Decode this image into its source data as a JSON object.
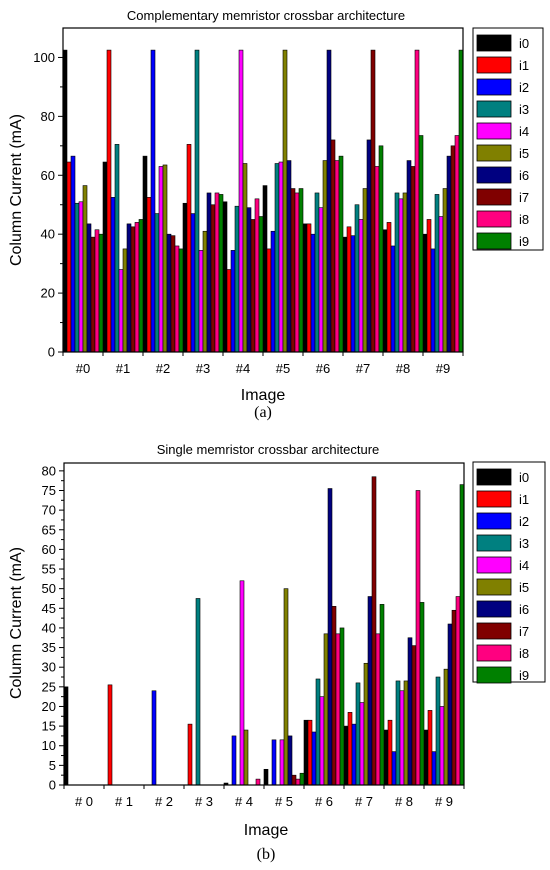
{
  "colors": [
    "#000000",
    "#ff0000",
    "#0000ff",
    "#008080",
    "#ff00ff",
    "#808000",
    "#000080",
    "#800000",
    "#ff0080",
    "#008000"
  ],
  "chart_data": [
    {
      "type": "bar",
      "title": "Complementary memristor crossbar architecture",
      "xlabel": "Image",
      "ylabel": "Column Current (mA)",
      "caption": "(a)",
      "categories": [
        "#0",
        "#1",
        "#2",
        "#3",
        "#4",
        "#5",
        "#6",
        "#7",
        "#8",
        "#9"
      ],
      "ylim": [
        0,
        110
      ],
      "yticks": [
        0,
        20,
        40,
        60,
        80,
        100
      ],
      "legend_position": "right, outside plot",
      "series": [
        {
          "name": "i0",
          "values": [
            102.5,
            64.5,
            66.5,
            50.5,
            51,
            56.5,
            43.5,
            39,
            41.5,
            40
          ]
        },
        {
          "name": "i1",
          "values": [
            64.5,
            102.5,
            52.5,
            70.5,
            28,
            35,
            43.5,
            42.5,
            44,
            45
          ]
        },
        {
          "name": "i2",
          "values": [
            66.5,
            52.5,
            102.5,
            47,
            34.5,
            41,
            40,
            39.5,
            36,
            35
          ]
        },
        {
          "name": "i3",
          "values": [
            50.5,
            70.5,
            47,
            102.5,
            49.5,
            64,
            54,
            50,
            54,
            53.5
          ]
        },
        {
          "name": "i4",
          "values": [
            51,
            28,
            63,
            34.5,
            102.5,
            64.5,
            49,
            45,
            52,
            46
          ]
        },
        {
          "name": "i5",
          "values": [
            56.5,
            35,
            63.5,
            41,
            64,
            102.5,
            65,
            55.5,
            54,
            55.5
          ]
        },
        {
          "name": "i6",
          "values": [
            43.5,
            43.5,
            40,
            54,
            49,
            65,
            102.5,
            72,
            65,
            66.5
          ]
        },
        {
          "name": "i7",
          "values": [
            39,
            42.5,
            39.5,
            50,
            45,
            55.5,
            72,
            102.5,
            63,
            70
          ]
        },
        {
          "name": "i8",
          "values": [
            41.5,
            44,
            36,
            54,
            52,
            54,
            65,
            63,
            102.5,
            73.5
          ]
        },
        {
          "name": "i9",
          "values": [
            40,
            45,
            35,
            53.5,
            46,
            55.5,
            66.5,
            70,
            73.5,
            102.5
          ]
        }
      ]
    },
    {
      "type": "bar",
      "title": "Single memristor crossbar architecture",
      "xlabel": "Image",
      "ylabel": "Column Current (mA)",
      "caption": "(b)",
      "categories": [
        "# 0",
        "# 1",
        "# 2",
        "# 3",
        "# 4",
        "# 5",
        "# 6",
        "# 7",
        "# 8",
        "# 9"
      ],
      "ylim": [
        0,
        82
      ],
      "yticks": [
        0,
        5,
        10,
        15,
        20,
        25,
        30,
        35,
        40,
        45,
        50,
        55,
        60,
        65,
        70,
        75,
        80
      ],
      "legend_position": "right, outside plot",
      "series": [
        {
          "name": "i0",
          "values": [
            25,
            0,
            0,
            0,
            0.5,
            4,
            16.5,
            15,
            14,
            14
          ]
        },
        {
          "name": "i1",
          "values": [
            0,
            25.5,
            0,
            15.5,
            0,
            0,
            16.5,
            18.5,
            16.5,
            19
          ]
        },
        {
          "name": "i2",
          "values": [
            0,
            0,
            24,
            0,
            12.5,
            11.5,
            13.5,
            15.5,
            8.5,
            8.5
          ]
        },
        {
          "name": "i3",
          "values": [
            0,
            0,
            0,
            47.5,
            0,
            0,
            27,
            26,
            26.5,
            27.5
          ]
        },
        {
          "name": "i4",
          "values": [
            0,
            0,
            0,
            0,
            52,
            11.5,
            22.5,
            21,
            24,
            20
          ]
        },
        {
          "name": "i5",
          "values": [
            0,
            0,
            0,
            0,
            14,
            50,
            38.5,
            31,
            26.5,
            29.5
          ]
        },
        {
          "name": "i6",
          "values": [
            0,
            0,
            0,
            0,
            0,
            12.5,
            75.5,
            48,
            37.5,
            41
          ]
        },
        {
          "name": "i7",
          "values": [
            0,
            0,
            0,
            0,
            0,
            2.5,
            45.5,
            78.5,
            35.5,
            44.5
          ]
        },
        {
          "name": "i8",
          "values": [
            0,
            0,
            0,
            0,
            1.5,
            1.5,
            38.5,
            38.5,
            75,
            48
          ]
        },
        {
          "name": "i9",
          "values": [
            0,
            0,
            0,
            0,
            0,
            3,
            40,
            46,
            46.5,
            76.5
          ]
        }
      ]
    }
  ]
}
